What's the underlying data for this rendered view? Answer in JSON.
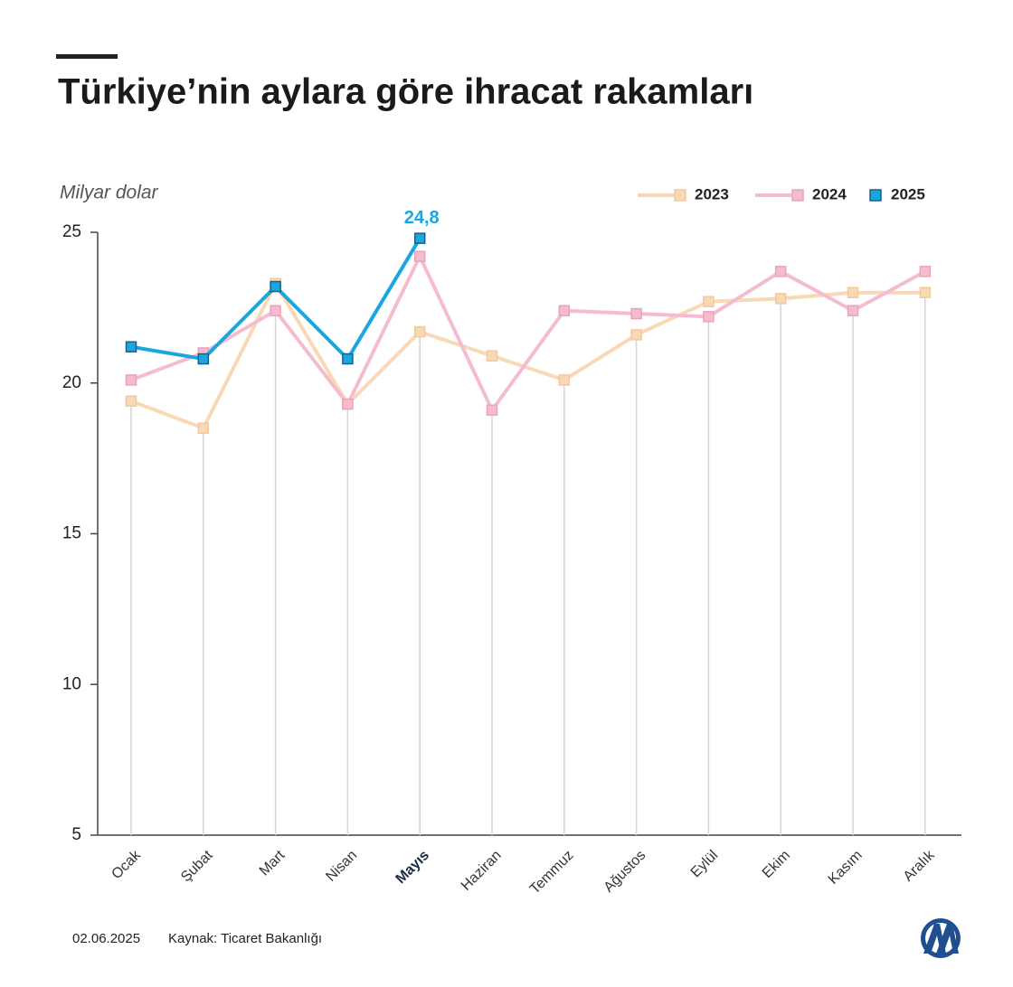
{
  "chart_data": {
    "type": "line",
    "title": "Türkiye’nin aylara göre ihracat rakamları",
    "y_label": "Milyar dolar",
    "categories": [
      "Ocak",
      "Şubat",
      "Mart",
      "Nisan",
      "Mayıs",
      "Haziran",
      "Temmuz",
      "Ağustos",
      "Eylül",
      "Ekim",
      "Kasım",
      "Aralık"
    ],
    "highlight_index": 4,
    "series": [
      {
        "name": "2023",
        "color": "#f9d9b5",
        "values": [
          19.4,
          18.5,
          23.3,
          19.3,
          21.7,
          20.9,
          20.1,
          21.6,
          22.7,
          22.8,
          23.0,
          23.0
        ]
      },
      {
        "name": "2024",
        "color": "#f5bcd0",
        "values": [
          20.1,
          21.0,
          22.4,
          19.3,
          24.2,
          19.1,
          22.4,
          22.3,
          22.2,
          23.7,
          22.4,
          23.7
        ]
      },
      {
        "name": "2025",
        "color": "#1aa7e0",
        "values": [
          21.2,
          20.8,
          23.2,
          20.8,
          24.8,
          null,
          null,
          null,
          null,
          null,
          null,
          null
        ],
        "value_labels": [
          null,
          null,
          null,
          null,
          "24,8",
          null,
          null,
          null,
          null,
          null,
          null,
          null
        ]
      }
    ],
    "ylim": [
      5,
      25
    ],
    "yticks": [
      5,
      10,
      15,
      20,
      25
    ],
    "legend": "top-right",
    "date": "02.06.2025",
    "source": "Kaynak: Ticaret Bakanlığı"
  }
}
